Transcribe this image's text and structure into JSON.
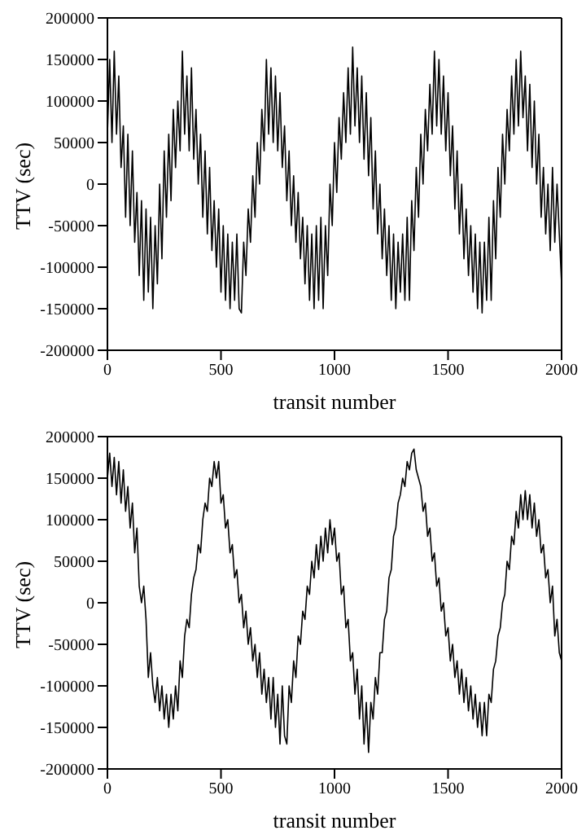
{
  "chart_data": [
    {
      "type": "line",
      "xlabel": "transit number",
      "ylabel": "TTV (sec)",
      "color": "#000000",
      "xlim": [
        0,
        2000
      ],
      "xticks": [
        0,
        500,
        1000,
        1500,
        2000
      ],
      "ylim": [
        -200000,
        200000
      ],
      "yticks": [
        -200000,
        -150000,
        -100000,
        -50000,
        0,
        50000,
        100000,
        150000,
        200000
      ],
      "legend": false,
      "grid": false,
      "x": [
        0,
        10,
        20,
        30,
        40,
        50,
        60,
        70,
        80,
        90,
        100,
        110,
        120,
        130,
        140,
        150,
        160,
        170,
        180,
        190,
        200,
        210,
        220,
        230,
        240,
        250,
        260,
        270,
        280,
        290,
        300,
        310,
        320,
        330,
        340,
        350,
        360,
        370,
        380,
        390,
        400,
        410,
        420,
        430,
        440,
        450,
        460,
        470,
        480,
        490,
        500,
        510,
        520,
        530,
        540,
        550,
        560,
        570,
        580,
        590,
        600,
        610,
        620,
        630,
        640,
        650,
        660,
        670,
        680,
        690,
        700,
        710,
        720,
        730,
        740,
        750,
        760,
        770,
        780,
        790,
        800,
        810,
        820,
        830,
        840,
        850,
        860,
        870,
        880,
        890,
        900,
        910,
        920,
        930,
        940,
        950,
        960,
        970,
        980,
        990,
        1000,
        1010,
        1020,
        1030,
        1040,
        1050,
        1060,
        1070,
        1080,
        1090,
        1100,
        1110,
        1120,
        1130,
        1140,
        1150,
        1160,
        1170,
        1180,
        1190,
        1200,
        1210,
        1220,
        1230,
        1240,
        1250,
        1260,
        1270,
        1280,
        1290,
        1300,
        1310,
        1320,
        1330,
        1340,
        1350,
        1360,
        1370,
        1380,
        1390,
        1400,
        1410,
        1420,
        1430,
        1440,
        1450,
        1460,
        1470,
        1480,
        1490,
        1500,
        1510,
        1520,
        1530,
        1540,
        1550,
        1560,
        1570,
        1580,
        1590,
        1600,
        1610,
        1620,
        1630,
        1640,
        1650,
        1660,
        1670,
        1680,
        1690,
        1700,
        1710,
        1720,
        1730,
        1740,
        1750,
        1760,
        1770,
        1780,
        1790,
        1800,
        1810,
        1820,
        1830,
        1840,
        1850,
        1860,
        1870,
        1880,
        1890,
        1900,
        1910,
        1920,
        1930,
        1940,
        1950,
        1960,
        1970,
        1980,
        1990,
        2000
      ],
      "values": [
        60000,
        150000,
        50000,
        160000,
        60000,
        130000,
        20000,
        70000,
        -40000,
        60000,
        -50000,
        40000,
        -70000,
        -10000,
        -110000,
        -20000,
        -140000,
        -30000,
        -130000,
        -40000,
        -150000,
        -50000,
        -120000,
        0,
        -90000,
        40000,
        -40000,
        60000,
        -20000,
        90000,
        20000,
        100000,
        40000,
        160000,
        60000,
        130000,
        40000,
        140000,
        30000,
        90000,
        0,
        60000,
        -40000,
        40000,
        -60000,
        20000,
        -80000,
        -20000,
        -100000,
        -30000,
        -130000,
        -50000,
        -140000,
        -60000,
        -150000,
        -70000,
        -140000,
        -60000,
        -150000,
        -155000,
        -70000,
        -110000,
        -30000,
        -70000,
        10000,
        -40000,
        50000,
        0,
        90000,
        40000,
        150000,
        60000,
        140000,
        50000,
        130000,
        40000,
        110000,
        20000,
        70000,
        -20000,
        40000,
        -50000,
        10000,
        -70000,
        -10000,
        -90000,
        -40000,
        -120000,
        -50000,
        -140000,
        -60000,
        -150000,
        -50000,
        -140000,
        -40000,
        -150000,
        -50000,
        -110000,
        0,
        -50000,
        50000,
        -10000,
        80000,
        30000,
        110000,
        50000,
        140000,
        60000,
        165000,
        70000,
        140000,
        50000,
        130000,
        30000,
        110000,
        10000,
        80000,
        -30000,
        40000,
        -60000,
        0,
        -90000,
        -30000,
        -110000,
        -50000,
        -140000,
        -60000,
        -150000,
        -70000,
        -130000,
        -60000,
        -140000,
        -40000,
        -140000,
        -20000,
        -80000,
        20000,
        -40000,
        60000,
        0,
        90000,
        40000,
        120000,
        60000,
        160000,
        70000,
        150000,
        60000,
        130000,
        40000,
        110000,
        10000,
        70000,
        -30000,
        40000,
        -60000,
        0,
        -90000,
        -30000,
        -110000,
        -50000,
        -130000,
        -60000,
        -150000,
        -70000,
        -155000,
        -70000,
        -140000,
        -40000,
        -140000,
        -20000,
        -90000,
        20000,
        -40000,
        60000,
        0,
        90000,
        40000,
        130000,
        60000,
        150000,
        70000,
        160000,
        80000,
        130000,
        40000,
        120000,
        20000,
        100000,
        0,
        60000,
        -40000,
        20000,
        -60000,
        0,
        -80000,
        20000,
        -70000,
        0,
        -60000,
        -120000
      ]
    },
    {
      "type": "line",
      "xlabel": "transit number",
      "ylabel": "TTV (sec)",
      "color": "#000000",
      "xlim": [
        0,
        2000
      ],
      "xticks": [
        0,
        500,
        1000,
        1500,
        2000
      ],
      "ylim": [
        -200000,
        200000
      ],
      "yticks": [
        -200000,
        -150000,
        -100000,
        -50000,
        0,
        50000,
        100000,
        150000,
        200000
      ],
      "legend": false,
      "grid": false,
      "x": [
        0,
        10,
        20,
        30,
        40,
        50,
        60,
        70,
        80,
        90,
        100,
        110,
        120,
        130,
        140,
        150,
        160,
        170,
        180,
        190,
        200,
        210,
        220,
        230,
        240,
        250,
        260,
        270,
        280,
        290,
        300,
        310,
        320,
        330,
        340,
        350,
        360,
        370,
        380,
        390,
        400,
        410,
        420,
        430,
        440,
        450,
        460,
        470,
        480,
        490,
        500,
        510,
        520,
        530,
        540,
        550,
        560,
        570,
        580,
        590,
        600,
        610,
        620,
        630,
        640,
        650,
        660,
        670,
        680,
        690,
        700,
        710,
        720,
        730,
        740,
        750,
        760,
        770,
        780,
        790,
        800,
        810,
        820,
        830,
        840,
        850,
        860,
        870,
        880,
        890,
        900,
        910,
        920,
        930,
        940,
        950,
        960,
        970,
        980,
        990,
        1000,
        1010,
        1020,
        1030,
        1040,
        1050,
        1060,
        1070,
        1080,
        1090,
        1100,
        1110,
        1120,
        1130,
        1140,
        1150,
        1160,
        1170,
        1180,
        1190,
        1200,
        1210,
        1220,
        1230,
        1240,
        1250,
        1260,
        1270,
        1280,
        1290,
        1300,
        1310,
        1320,
        1330,
        1340,
        1350,
        1360,
        1370,
        1380,
        1390,
        1400,
        1410,
        1420,
        1430,
        1440,
        1450,
        1460,
        1470,
        1480,
        1490,
        1500,
        1510,
        1520,
        1530,
        1540,
        1550,
        1560,
        1570,
        1580,
        1590,
        1600,
        1610,
        1620,
        1630,
        1640,
        1650,
        1660,
        1670,
        1680,
        1690,
        1700,
        1710,
        1720,
        1730,
        1740,
        1750,
        1760,
        1770,
        1780,
        1790,
        1800,
        1810,
        1820,
        1830,
        1840,
        1850,
        1860,
        1870,
        1880,
        1890,
        1900,
        1910,
        1920,
        1930,
        1940,
        1950,
        1960,
        1970,
        1980,
        1990,
        2000
      ],
      "values": [
        150000,
        180000,
        140000,
        175000,
        130000,
        170000,
        120000,
        160000,
        110000,
        140000,
        90000,
        120000,
        60000,
        90000,
        20000,
        0,
        20000,
        -20000,
        -90000,
        -60000,
        -100000,
        -120000,
        -90000,
        -130000,
        -100000,
        -140000,
        -110000,
        -150000,
        -110000,
        -140000,
        -100000,
        -130000,
        -70000,
        -90000,
        -40000,
        -20000,
        -30000,
        10000,
        30000,
        40000,
        70000,
        60000,
        100000,
        120000,
        110000,
        150000,
        140000,
        170000,
        150000,
        170000,
        120000,
        130000,
        90000,
        100000,
        60000,
        70000,
        30000,
        40000,
        0,
        10000,
        -30000,
        -10000,
        -50000,
        -30000,
        -70000,
        -50000,
        -90000,
        -60000,
        -110000,
        -80000,
        -120000,
        -90000,
        -140000,
        -90000,
        -150000,
        -110000,
        -170000,
        -100000,
        -160000,
        -170000,
        -100000,
        -120000,
        -70000,
        -90000,
        -40000,
        -50000,
        -10000,
        -20000,
        20000,
        10000,
        50000,
        30000,
        70000,
        40000,
        80000,
        50000,
        90000,
        60000,
        100000,
        70000,
        90000,
        50000,
        60000,
        10000,
        20000,
        -30000,
        -20000,
        -70000,
        -60000,
        -110000,
        -80000,
        -140000,
        -100000,
        -170000,
        -120000,
        -180000,
        -120000,
        -140000,
        -90000,
        -110000,
        -60000,
        -60000,
        -20000,
        -10000,
        30000,
        40000,
        80000,
        90000,
        120000,
        130000,
        150000,
        140000,
        170000,
        160000,
        180000,
        185000,
        160000,
        150000,
        140000,
        110000,
        120000,
        80000,
        90000,
        50000,
        60000,
        20000,
        30000,
        -10000,
        0,
        -40000,
        -30000,
        -70000,
        -50000,
        -90000,
        -70000,
        -110000,
        -80000,
        -120000,
        -90000,
        -130000,
        -100000,
        -140000,
        -110000,
        -150000,
        -120000,
        -160000,
        -120000,
        -160000,
        -110000,
        -120000,
        -80000,
        -70000,
        -40000,
        -30000,
        0,
        10000,
        50000,
        40000,
        80000,
        70000,
        110000,
        90000,
        130000,
        100000,
        135000,
        100000,
        130000,
        90000,
        120000,
        80000,
        100000,
        60000,
        70000,
        30000,
        40000,
        0,
        20000,
        -40000,
        -20000,
        -60000,
        -70000
      ]
    }
  ]
}
